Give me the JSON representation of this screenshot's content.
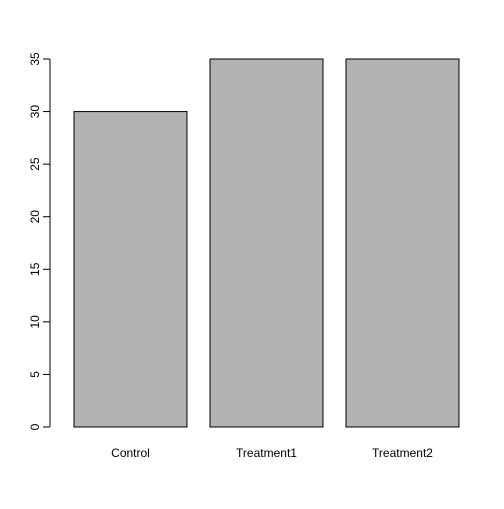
{
  "chart_data": {
    "type": "bar",
    "categories": [
      "Control",
      "Treatment1",
      "Treatment2"
    ],
    "values": [
      30,
      35,
      35
    ],
    "yticks": [
      0,
      5,
      10,
      15,
      20,
      25,
      30,
      35
    ],
    "ylim": [
      0,
      35
    ],
    "grid": false,
    "bar_color": "#b2b2b2",
    "bar_border_color": "#000000"
  }
}
